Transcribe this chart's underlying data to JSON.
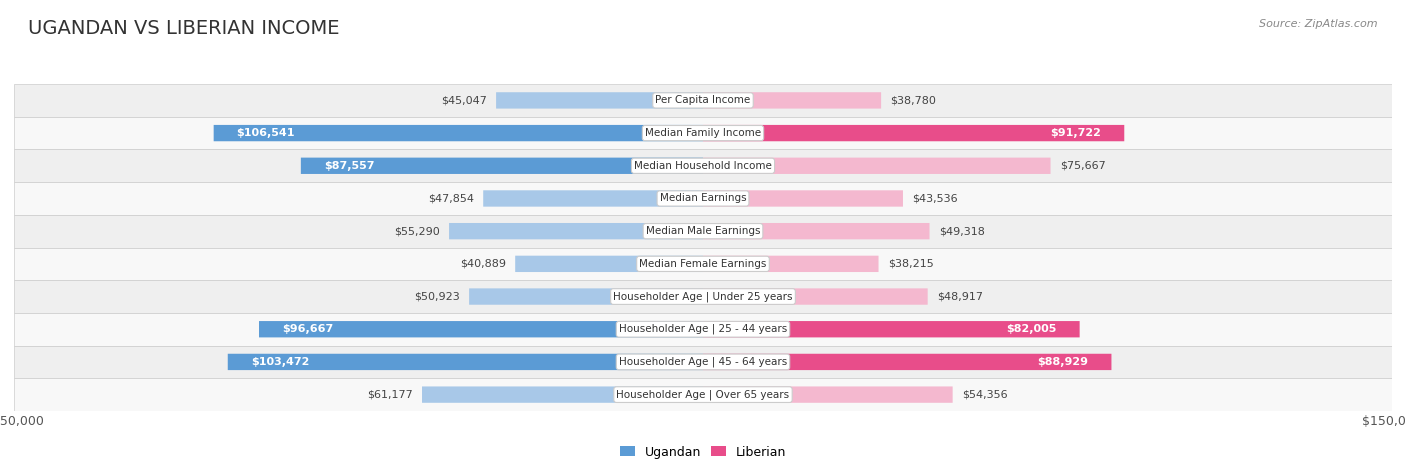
{
  "title": "UGANDAN VS LIBERIAN INCOME",
  "source": "Source: ZipAtlas.com",
  "categories": [
    "Per Capita Income",
    "Median Family Income",
    "Median Household Income",
    "Median Earnings",
    "Median Male Earnings",
    "Median Female Earnings",
    "Householder Age | Under 25 years",
    "Householder Age | 25 - 44 years",
    "Householder Age | 45 - 64 years",
    "Householder Age | Over 65 years"
  ],
  "ugandan": [
    45047,
    106541,
    87557,
    47854,
    55290,
    40889,
    50923,
    96667,
    103472,
    61177
  ],
  "liberian": [
    38780,
    91722,
    75667,
    43536,
    49318,
    38215,
    48917,
    82005,
    88929,
    54356
  ],
  "max_val": 150000,
  "ugandan_color_light": "#a8c8e8",
  "ugandan_color_dark": "#5b9bd5",
  "liberian_color_light": "#f4b8cf",
  "liberian_color_dark": "#e84d8a",
  "row_bg_odd": "#efefef",
  "row_bg_even": "#f8f8f8",
  "bar_height": 0.5,
  "ugandan_threshold": 80000,
  "liberian_threshold": 80000,
  "title_fontsize": 14,
  "label_fontsize": 8,
  "value_fontsize": 8,
  "source_fontsize": 8
}
